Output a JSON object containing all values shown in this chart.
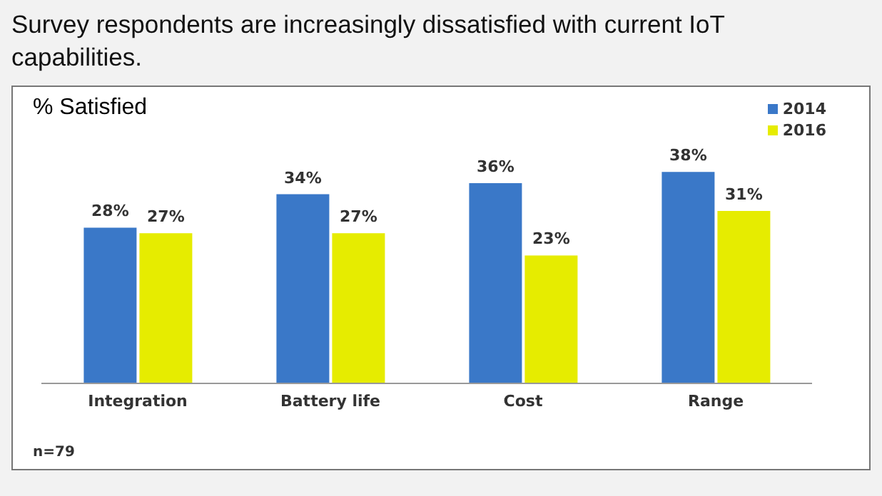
{
  "chart_data": {
    "type": "bar",
    "title": "Survey respondents are increasingly dissatisfied with current IoT capabilities.",
    "ylabel": "% Satisfied",
    "categories": [
      "Integration",
      "Battery life",
      "Cost",
      "Range"
    ],
    "series": [
      {
        "name": "2014",
        "color": "#3a78c8",
        "values": [
          28,
          34,
          36,
          38
        ],
        "value_labels": [
          "28%",
          "34%",
          "36%",
          "38%"
        ]
      },
      {
        "name": "2016",
        "color": "#e6ec00",
        "values": [
          27,
          27,
          23,
          31
        ],
        "value_labels": [
          "27%",
          "27%",
          "23%",
          "31%"
        ]
      }
    ],
    "legend": "top right",
    "grid": false,
    "annotations": [
      "n=79"
    ]
  }
}
